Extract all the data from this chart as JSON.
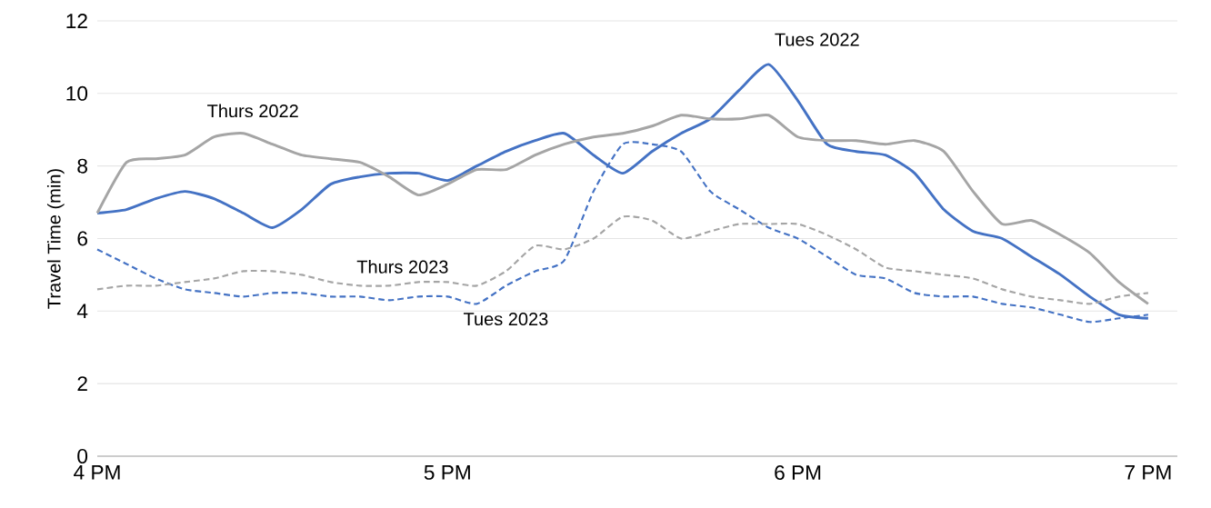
{
  "chart_data": {
    "type": "line",
    "ylabel": "Travel Time (min)",
    "categories": [
      "4 PM",
      null,
      null,
      null,
      null,
      null,
      null,
      null,
      null,
      null,
      null,
      null,
      "5 PM",
      null,
      null,
      null,
      null,
      null,
      null,
      null,
      null,
      null,
      null,
      null,
      "6 PM",
      null,
      null,
      null,
      null,
      null,
      null,
      null,
      null,
      null,
      null,
      null,
      "7 PM"
    ],
    "ylim": [
      0,
      12
    ],
    "yticks": [
      0,
      2,
      4,
      6,
      8,
      10,
      12
    ],
    "grid": "y",
    "series": [
      {
        "name": "Tues 2022",
        "color": "#4472c4",
        "line_style": "solid",
        "values": [
          6.7,
          6.8,
          7.1,
          7.3,
          7.1,
          6.7,
          6.3,
          6.8,
          7.5,
          7.7,
          7.8,
          7.8,
          7.6,
          8.0,
          8.4,
          8.7,
          8.9,
          8.3,
          7.8,
          8.4,
          8.9,
          9.3,
          10.1,
          10.8,
          9.8,
          8.6,
          8.4,
          8.3,
          7.8,
          6.8,
          6.2,
          6.0,
          5.5,
          5.0,
          4.4,
          3.9,
          3.8
        ]
      },
      {
        "name": "Thurs 2022",
        "color": "#a5a5a5",
        "line_style": "solid",
        "values": [
          6.7,
          8.1,
          8.2,
          8.3,
          8.8,
          8.9,
          8.6,
          8.3,
          8.2,
          8.1,
          7.7,
          7.2,
          7.5,
          7.9,
          7.9,
          8.3,
          8.6,
          8.8,
          8.9,
          9.1,
          9.4,
          9.3,
          9.3,
          9.4,
          8.8,
          8.7,
          8.7,
          8.6,
          8.7,
          8.4,
          7.3,
          6.4,
          6.5,
          6.1,
          5.6,
          4.8,
          4.2
        ]
      },
      {
        "name": "Tues 2023",
        "color": "#4472c4",
        "line_style": "dashed",
        "values": [
          5.7,
          5.3,
          4.9,
          4.6,
          4.5,
          4.4,
          4.5,
          4.5,
          4.4,
          4.4,
          4.3,
          4.4,
          4.4,
          4.2,
          4.7,
          5.1,
          5.4,
          7.3,
          8.6,
          8.6,
          8.4,
          7.3,
          6.8,
          6.3,
          6.0,
          5.5,
          5.0,
          4.9,
          4.5,
          4.4,
          4.4,
          4.2,
          4.1,
          3.9,
          3.7,
          3.8,
          3.9
        ]
      },
      {
        "name": "Thurs 2023",
        "color": "#a5a5a5",
        "line_style": "dashed",
        "values": [
          4.6,
          4.7,
          4.7,
          4.8,
          4.9,
          5.1,
          5.1,
          5.0,
          4.8,
          4.7,
          4.7,
          4.8,
          4.8,
          4.7,
          5.1,
          5.8,
          5.7,
          6.0,
          6.6,
          6.5,
          6.0,
          6.2,
          6.4,
          6.4,
          6.4,
          6.1,
          5.7,
          5.2,
          5.1,
          5.0,
          4.9,
          4.6,
          4.4,
          4.3,
          4.2,
          4.4,
          4.5
        ]
      }
    ]
  }
}
